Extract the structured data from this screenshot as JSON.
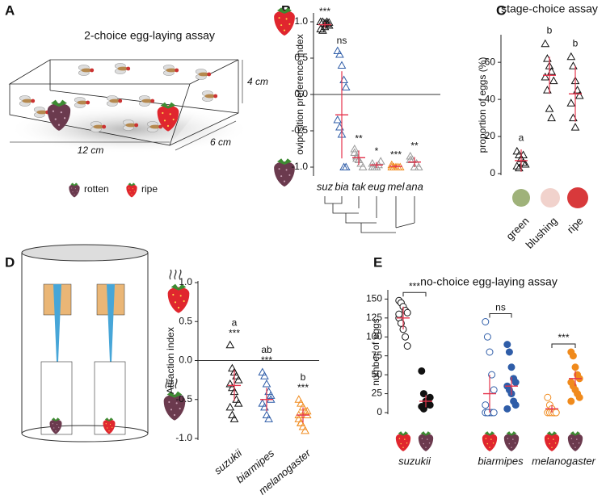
{
  "panels": [
    "A",
    "B",
    "C",
    "D",
    "E"
  ],
  "diagrams": {
    "egg_laying_assay": {
      "title": "2-choice egg-laying assay",
      "dimensions": [
        "4 cm",
        "12 cm",
        "6 cm"
      ],
      "legend": [
        "rotten",
        "ripe"
      ]
    }
  },
  "chart_data": [
    {
      "type": "strip",
      "ylabel": "oviposition preference index",
      "categories": [
        "suz",
        "bia",
        "tak",
        "eug",
        "mel",
        "ana"
      ],
      "colors": [
        "#111111",
        "#2f5da8",
        "#9a9a9a",
        "#9a9a9a",
        "#f08a1c",
        "#9a9a9a"
      ],
      "marker": "triangle",
      "mean_color": "#e5334b",
      "points": [
        [
          1,
          1,
          0.98,
          0.97,
          0.95,
          0.9,
          0.88,
          0.93,
          1,
          0.99
        ],
        [
          0.6,
          0.55,
          0.4,
          0.2,
          0.1,
          -0.35,
          -0.45,
          -0.55,
          -1,
          -1
        ],
        [
          -0.8,
          -0.85,
          -0.9,
          -0.95,
          -1,
          -0.75,
          -0.88
        ],
        [
          -0.95,
          -1,
          -1,
          -0.97,
          -0.92,
          -1
        ],
        [
          -1,
          -1,
          -1,
          -1,
          -1,
          -0.97
        ],
        [
          -0.85,
          -0.9,
          -1,
          -0.95,
          -1,
          -0.9
        ]
      ],
      "means": [
        0.96,
        -0.28,
        -0.87,
        -0.97,
        -0.99,
        -0.93
      ],
      "errors": [
        0.04,
        0.6,
        0.1,
        0.04,
        0.02,
        0.07
      ],
      "annotations": [
        [
          "***"
        ],
        [
          "ns"
        ],
        [
          "**"
        ],
        [
          "*"
        ],
        [
          "***"
        ],
        [
          "**"
        ]
      ],
      "ylim": [
        -1.1,
        1.1
      ],
      "yticks": [
        {
          "value": -1,
          "label": "-1.0"
        },
        {
          "value": -0.5,
          "label": "-0.5"
        },
        {
          "value": 0,
          "label": "0.0"
        },
        {
          "value": 0.5,
          "label": "0.5"
        },
        {
          "value": 1,
          "label": "1.0"
        }
      ],
      "zero_line": true
    },
    {
      "type": "strip",
      "title": "stage-choice assay",
      "ylabel": "proportion of eggs (%)",
      "categories": [
        "green",
        "blushing",
        "ripe"
      ],
      "colors": [
        "#111111",
        "#111111",
        "#111111"
      ],
      "marker": "triangle",
      "mean_color": "#e5334b",
      "points": [
        [
          12,
          10,
          8,
          6,
          5,
          4,
          3,
          8,
          10
        ],
        [
          70,
          62,
          58,
          55,
          50,
          52,
          45,
          35,
          30
        ],
        [
          63,
          58,
          50,
          45,
          42,
          38,
          30,
          25
        ]
      ],
      "means": [
        7,
        53,
        43
      ],
      "errors": [
        6,
        10,
        15
      ],
      "annotations": [
        [
          "a"
        ],
        [
          "b"
        ],
        [
          "b"
        ]
      ],
      "ylim": [
        0,
        74
      ],
      "yticks": [
        0,
        20,
        40,
        60
      ],
      "zero_line": false
    },
    {
      "type": "strip",
      "ylabel": "Attraction index",
      "categories": [
        "suzukii",
        "biarmipes",
        "melanogaster"
      ],
      "colors": [
        "#111111",
        "#2f5da8",
        "#f08a1c"
      ],
      "marker": "triangle",
      "mean_color": "#e5334b",
      "points": [
        [
          0.2,
          -0.1,
          -0.15,
          -0.2,
          -0.25,
          -0.3,
          -0.35,
          -0.4,
          -0.5,
          -0.55,
          -0.6,
          -0.7,
          -0.75
        ],
        [
          -0.15,
          -0.2,
          -0.3,
          -0.4,
          -0.5,
          -0.55,
          -0.6,
          -0.7,
          -0.75,
          -0.45
        ],
        [
          -0.5,
          -0.55,
          -0.6,
          -0.65,
          -0.7,
          -0.75,
          -0.8,
          -0.85,
          -0.9,
          -0.65,
          -0.7,
          -0.8
        ]
      ],
      "means": [
        -0.32,
        -0.5,
        -0.7
      ],
      "errors": [
        0.2,
        0.15,
        0.1
      ],
      "annotations": [
        [
          "a",
          "***"
        ],
        [
          "ab",
          "***"
        ],
        [
          "b",
          "***"
        ]
      ],
      "ylim": [
        -1,
        1
      ],
      "yticks": [
        {
          "value": -1,
          "label": "-1.0"
        },
        {
          "value": -0.5,
          "label": "-0.5"
        },
        {
          "value": 0,
          "label": "0.0"
        },
        {
          "value": 0.5,
          "label": "0.5"
        },
        {
          "value": 1,
          "label": "1.0"
        }
      ],
      "zero_line": true
    },
    {
      "type": "paired-strip",
      "title": "no-choice egg-laying assay",
      "ylabel": "number of eggs",
      "categories": [
        "suzukii",
        "biarmipes",
        "melanogaster"
      ],
      "colors": [
        "#111111",
        "#2f5da8",
        "#f08a1c"
      ],
      "marker": "circle",
      "filled": [
        false,
        true
      ],
      "mean_color": "#e5334b",
      "points": [
        [
          [
            148,
            145,
            140,
            135,
            132,
            125,
            118,
            110,
            100,
            88,
            130
          ],
          [
            55,
            25,
            15,
            12,
            10,
            8,
            5,
            10,
            15,
            20
          ]
        ],
        [
          [
            120,
            100,
            80,
            50,
            30,
            10,
            0,
            0,
            0,
            0,
            0,
            0
          ],
          [
            90,
            80,
            60,
            45,
            40,
            35,
            30,
            25,
            15,
            10,
            5
          ]
        ],
        [
          [
            20,
            10,
            5,
            0,
            0,
            0,
            0,
            0,
            0,
            0
          ],
          [
            80,
            75,
            60,
            50,
            45,
            40,
            35,
            30,
            25,
            20,
            15
          ]
        ]
      ],
      "means": [
        [
          125,
          15
        ],
        [
          25,
          35
        ],
        [
          5,
          45
        ]
      ],
      "errors": [
        [
          15,
          8
        ],
        [
          25,
          12
        ],
        [
          5,
          10
        ]
      ],
      "annotations": [
        "***",
        "ns",
        "***"
      ],
      "ylim": [
        0,
        160
      ],
      "yticks": [
        0,
        25,
        50,
        75,
        100,
        125,
        150
      ]
    }
  ]
}
